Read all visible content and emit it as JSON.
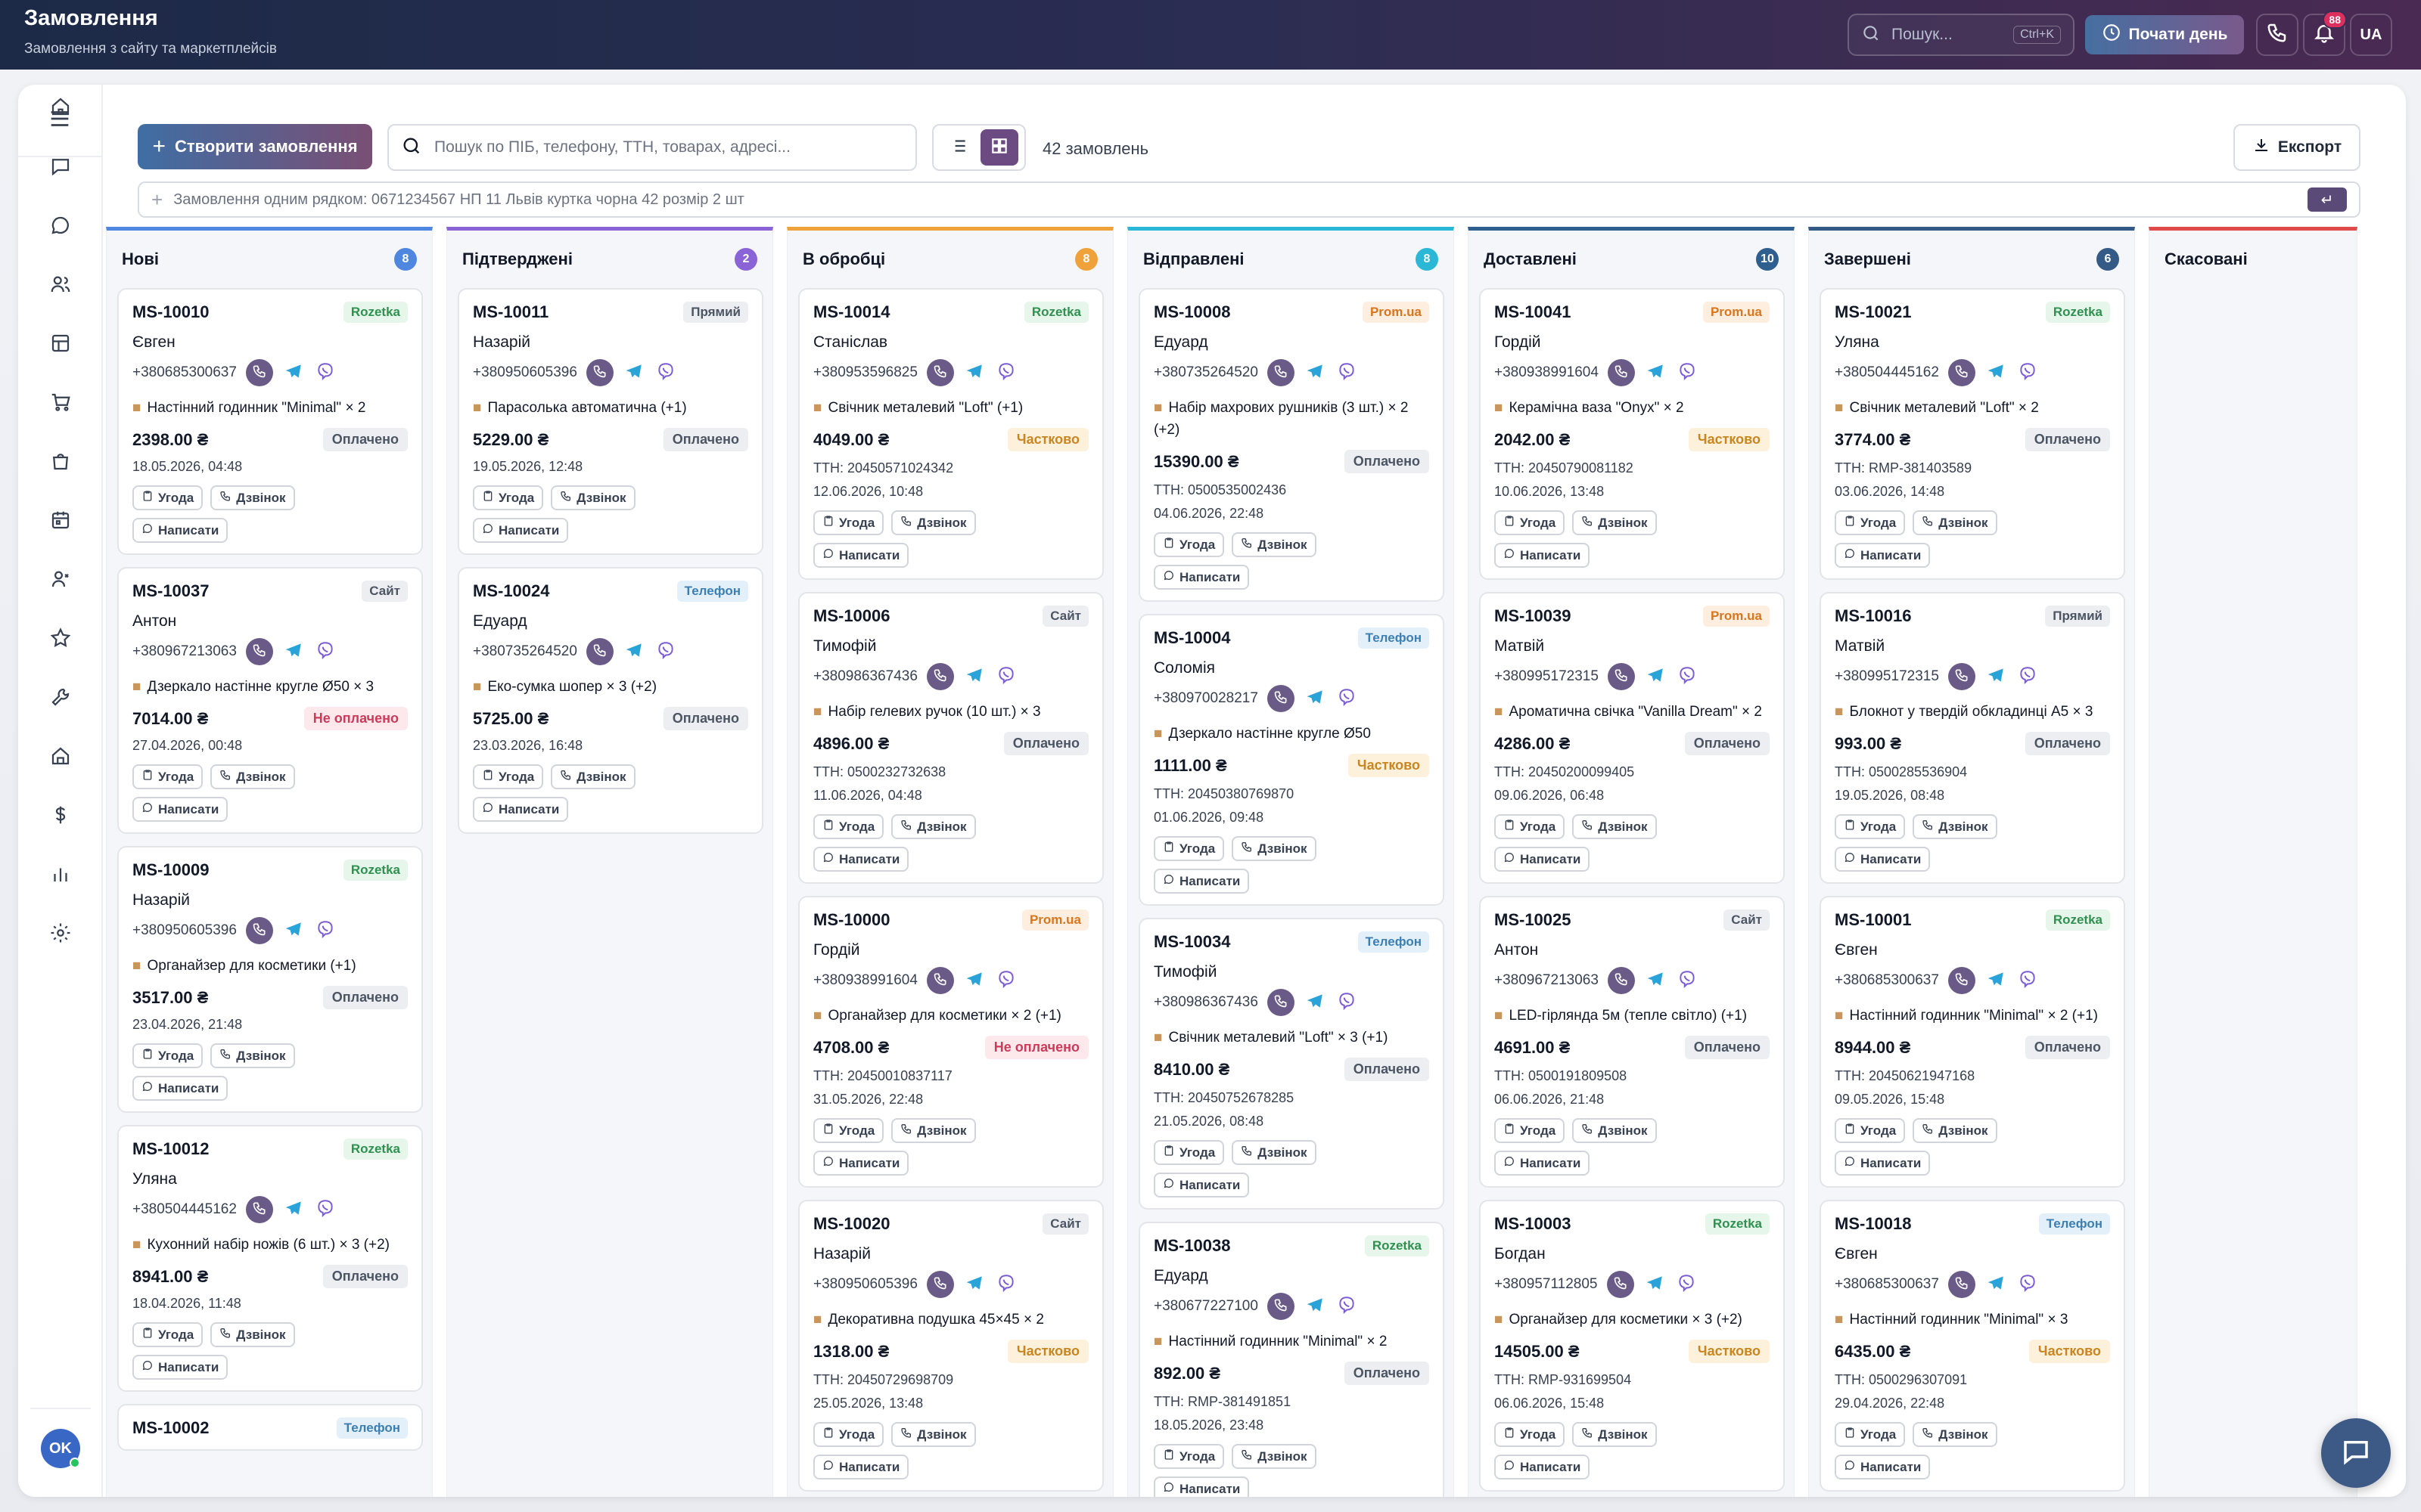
{
  "header": {
    "title": "Замовлення",
    "subtitle": "Замовлення з сайту та маркетплейсів",
    "search_placeholder": "Пошук...",
    "search_shortcut": "Ctrl+K",
    "start_day_label": "Почати день",
    "notifications_count": "88",
    "language": "UA"
  },
  "sidebar": {
    "items": [
      "menu-icon",
      "home-icon",
      "messages-icon",
      "chat-icon",
      "users-icon",
      "layout-icon",
      "cart-icon",
      "bag-icon",
      "calendar-icon",
      "contacts-icon",
      "star-icon",
      "wrench-icon",
      "building-icon",
      "dollar-icon",
      "chart-icon",
      "settings-icon"
    ],
    "avatar_initials": "OK"
  },
  "toolbar": {
    "create_label": "Створити замовлення",
    "search_placeholder": "Пошук по ПІБ, телефону, ТТН, товарах, адресі...",
    "count_label": "42 замовлень",
    "export_label": "Експорт",
    "quick_placeholder": "Замовлення одним рядком: 0671234567 НП 11 Львів куртка чорна 42 розмір 2 шт",
    "enter_symbol": "↵"
  },
  "columns": [
    {
      "title": "Нові",
      "count": "8",
      "color": "#4f87e0",
      "cards": [
        {
          "id": "MS-10010",
          "source": "Rozetka",
          "src": "rozetka",
          "name": "Євген",
          "phone": "+380685300637",
          "item": "Настінний годинник \"Minimal\" × 2",
          "price": "2398.00 ₴",
          "pay": "Оплачено",
          "payk": "paid",
          "ttn": "",
          "date": "18.05.2026, 04:48"
        },
        {
          "id": "MS-10037",
          "source": "Сайт",
          "src": "site",
          "name": "Антон",
          "phone": "+380967213063",
          "item": "Дзеркало настінне кругле Ø50 × 3",
          "price": "7014.00 ₴",
          "pay": "Не оплачено",
          "payk": "unpaid",
          "ttn": "",
          "date": "27.04.2026, 00:48"
        },
        {
          "id": "MS-10009",
          "source": "Rozetka",
          "src": "rozetka",
          "name": "Назарій",
          "phone": "+380950605396",
          "item": "Органайзер для косметики (+1)",
          "price": "3517.00 ₴",
          "pay": "Оплачено",
          "payk": "paid",
          "ttn": "",
          "date": "23.04.2026, 21:48"
        },
        {
          "id": "MS-10012",
          "source": "Rozetka",
          "src": "rozetka",
          "name": "Уляна",
          "phone": "+380504445162",
          "item": "Кухонний набір ножів (6 шт.) × 3 (+2)",
          "price": "8941.00 ₴",
          "pay": "Оплачено",
          "payk": "paid",
          "ttn": "",
          "date": "18.04.2026, 11:48"
        },
        {
          "id": "MS-10002",
          "source": "Телефон",
          "src": "phone",
          "name": "",
          "phone": "",
          "item": "",
          "price": "",
          "pay": "",
          "payk": "paid",
          "ttn": "",
          "date": ""
        }
      ]
    },
    {
      "title": "Підтверджені",
      "count": "2",
      "color": "#8a63d6",
      "cards": [
        {
          "id": "MS-10011",
          "source": "Прямий",
          "src": "direct",
          "name": "Назарій",
          "phone": "+380950605396",
          "item": "Парасолька автоматична (+1)",
          "price": "5229.00 ₴",
          "pay": "Оплачено",
          "payk": "paid",
          "ttn": "",
          "date": "19.05.2026, 12:48"
        },
        {
          "id": "MS-10024",
          "source": "Телефон",
          "src": "phone",
          "name": "Едуард",
          "phone": "+380735264520",
          "item": "Еко-сумка шопер × 3 (+2)",
          "price": "5725.00 ₴",
          "pay": "Оплачено",
          "payk": "paid",
          "ttn": "",
          "date": "23.03.2026, 16:48"
        }
      ]
    },
    {
      "title": "В обробці",
      "count": "8",
      "color": "#f0a23a",
      "cards": [
        {
          "id": "MS-10014",
          "source": "Rozetka",
          "src": "rozetka",
          "name": "Станіслав",
          "phone": "+380953596825",
          "item": "Свічник металевий \"Loft\" (+1)",
          "price": "4049.00 ₴",
          "pay": "Частково",
          "payk": "part",
          "ttn": "ТТН: 20450571024342",
          "date": "12.06.2026, 10:48"
        },
        {
          "id": "MS-10006",
          "source": "Сайт",
          "src": "site",
          "name": "Тимофій",
          "phone": "+380986367436",
          "item": "Набір гелевих ручок (10 шт.) × 3",
          "price": "4896.00 ₴",
          "pay": "Оплачено",
          "payk": "paid",
          "ttn": "ТТН: 0500232732638",
          "date": "11.06.2026, 04:48"
        },
        {
          "id": "MS-10000",
          "source": "Prom.ua",
          "src": "prom",
          "name": "Гордій",
          "phone": "+380938991604",
          "item": "Органайзер для косметики × 2 (+1)",
          "price": "4708.00 ₴",
          "pay": "Не оплачено",
          "payk": "unpaid",
          "ttn": "ТТН: 20450010837117",
          "date": "31.05.2026, 22:48"
        },
        {
          "id": "MS-10020",
          "source": "Сайт",
          "src": "site",
          "name": "Назарій",
          "phone": "+380950605396",
          "item": "Декоративна подушка 45×45 × 2",
          "price": "1318.00 ₴",
          "pay": "Частково",
          "payk": "part",
          "ttn": "ТТН: 20450729698709",
          "date": "25.05.2026, 13:48"
        }
      ]
    },
    {
      "title": "Відправлені",
      "count": "8",
      "color": "#2bb7d6",
      "cards": [
        {
          "id": "MS-10008",
          "source": "Prom.ua",
          "src": "prom",
          "name": "Едуард",
          "phone": "+380735264520",
          "item": "Набір махрових рушників (3 шт.) × 2 (+2)",
          "price": "15390.00 ₴",
          "pay": "Оплачено",
          "payk": "paid",
          "ttn": "ТТН: 0500535002436",
          "date": "04.06.2026, 22:48"
        },
        {
          "id": "MS-10004",
          "source": "Телефон",
          "src": "phone",
          "name": "Соломія",
          "phone": "+380970028217",
          "item": "Дзеркало настінне кругле Ø50",
          "price": "1111.00 ₴",
          "pay": "Частково",
          "payk": "part",
          "ttn": "ТТН: 20450380769870",
          "date": "01.06.2026, 09:48"
        },
        {
          "id": "MS-10034",
          "source": "Телефон",
          "src": "phone",
          "name": "Тимофій",
          "phone": "+380986367436",
          "item": "Свічник металевий \"Loft\" × 3 (+1)",
          "price": "8410.00 ₴",
          "pay": "Оплачено",
          "payk": "paid",
          "ttn": "ТТН: 20450752678285",
          "date": "21.05.2026, 08:48"
        },
        {
          "id": "MS-10038",
          "source": "Rozetka",
          "src": "rozetka",
          "name": "Едуард",
          "phone": "+380677227100",
          "item": "Настінний годинник \"Minimal\" × 2",
          "price": "892.00 ₴",
          "pay": "Оплачено",
          "payk": "paid",
          "ttn": "ТТН: RMP-381491851",
          "date": "18.05.2026, 23:48"
        }
      ]
    },
    {
      "title": "Доставлені",
      "count": "10",
      "color": "#2f5f8e",
      "cards": [
        {
          "id": "MS-10041",
          "source": "Prom.ua",
          "src": "prom",
          "name": "Гордій",
          "phone": "+380938991604",
          "item": "Керамічна ваза \"Onyx\" × 2",
          "price": "2042.00 ₴",
          "pay": "Частково",
          "payk": "part",
          "ttn": "ТТН: 20450790081182",
          "date": "10.06.2026, 13:48"
        },
        {
          "id": "MS-10039",
          "source": "Prom.ua",
          "src": "prom",
          "name": "Матвій",
          "phone": "+380995172315",
          "item": "Ароматична свічка \"Vanilla Dream\" × 2",
          "price": "4286.00 ₴",
          "pay": "Оплачено",
          "payk": "paid",
          "ttn": "ТТН: 20450200099405",
          "date": "09.06.2026, 06:48"
        },
        {
          "id": "MS-10025",
          "source": "Сайт",
          "src": "site",
          "name": "Антон",
          "phone": "+380967213063",
          "item": "LED-гірлянда 5м (тепле світло) (+1)",
          "price": "4691.00 ₴",
          "pay": "Оплачено",
          "payk": "paid",
          "ttn": "ТТН: 0500191809508",
          "date": "06.06.2026, 21:48"
        },
        {
          "id": "MS-10003",
          "source": "Rozetka",
          "src": "rozetka",
          "name": "Богдан",
          "phone": "+380957112805",
          "item": "Органайзер для косметики × 3 (+2)",
          "price": "14505.00 ₴",
          "pay": "Частково",
          "payk": "part",
          "ttn": "ТТН: RMP-931699504",
          "date": "06.06.2026, 15:48"
        }
      ]
    },
    {
      "title": "Завершені",
      "count": "6",
      "color": "#345a86",
      "cards": [
        {
          "id": "MS-10021",
          "source": "Rozetka",
          "src": "rozetka",
          "name": "Уляна",
          "phone": "+380504445162",
          "item": "Свічник металевий \"Loft\" × 2",
          "price": "3774.00 ₴",
          "pay": "Оплачено",
          "payk": "paid",
          "ttn": "ТТН: RMP-381403589",
          "date": "03.06.2026, 14:48"
        },
        {
          "id": "MS-10016",
          "source": "Прямий",
          "src": "direct",
          "name": "Матвій",
          "phone": "+380995172315",
          "item": "Блокнот у твердій обкладинці A5 × 3",
          "price": "993.00 ₴",
          "pay": "Оплачено",
          "payk": "paid",
          "ttn": "ТТН: 0500285536904",
          "date": "19.05.2026, 08:48"
        },
        {
          "id": "MS-10001",
          "source": "Rozetka",
          "src": "rozetka",
          "name": "Євген",
          "phone": "+380685300637",
          "item": "Настінний годинник \"Minimal\" × 2 (+1)",
          "price": "8944.00 ₴",
          "pay": "Оплачено",
          "payk": "paid",
          "ttn": "ТТН: 20450621947168",
          "date": "09.05.2026, 15:48"
        },
        {
          "id": "MS-10018",
          "source": "Телефон",
          "src": "phone",
          "name": "Євген",
          "phone": "+380685300637",
          "item": "Настінний годинник \"Minimal\" × 3",
          "price": "6435.00 ₴",
          "pay": "Частково",
          "payk": "part",
          "ttn": "ТТН: 0500296307091",
          "date": "29.04.2026, 22:48"
        }
      ]
    },
    {
      "title": "Скасовані",
      "count": "",
      "color": "#e04a4a",
      "cards": []
    }
  ],
  "card_actions": {
    "deal": "Угода",
    "call": "Дзвінок",
    "write": "Написати"
  }
}
